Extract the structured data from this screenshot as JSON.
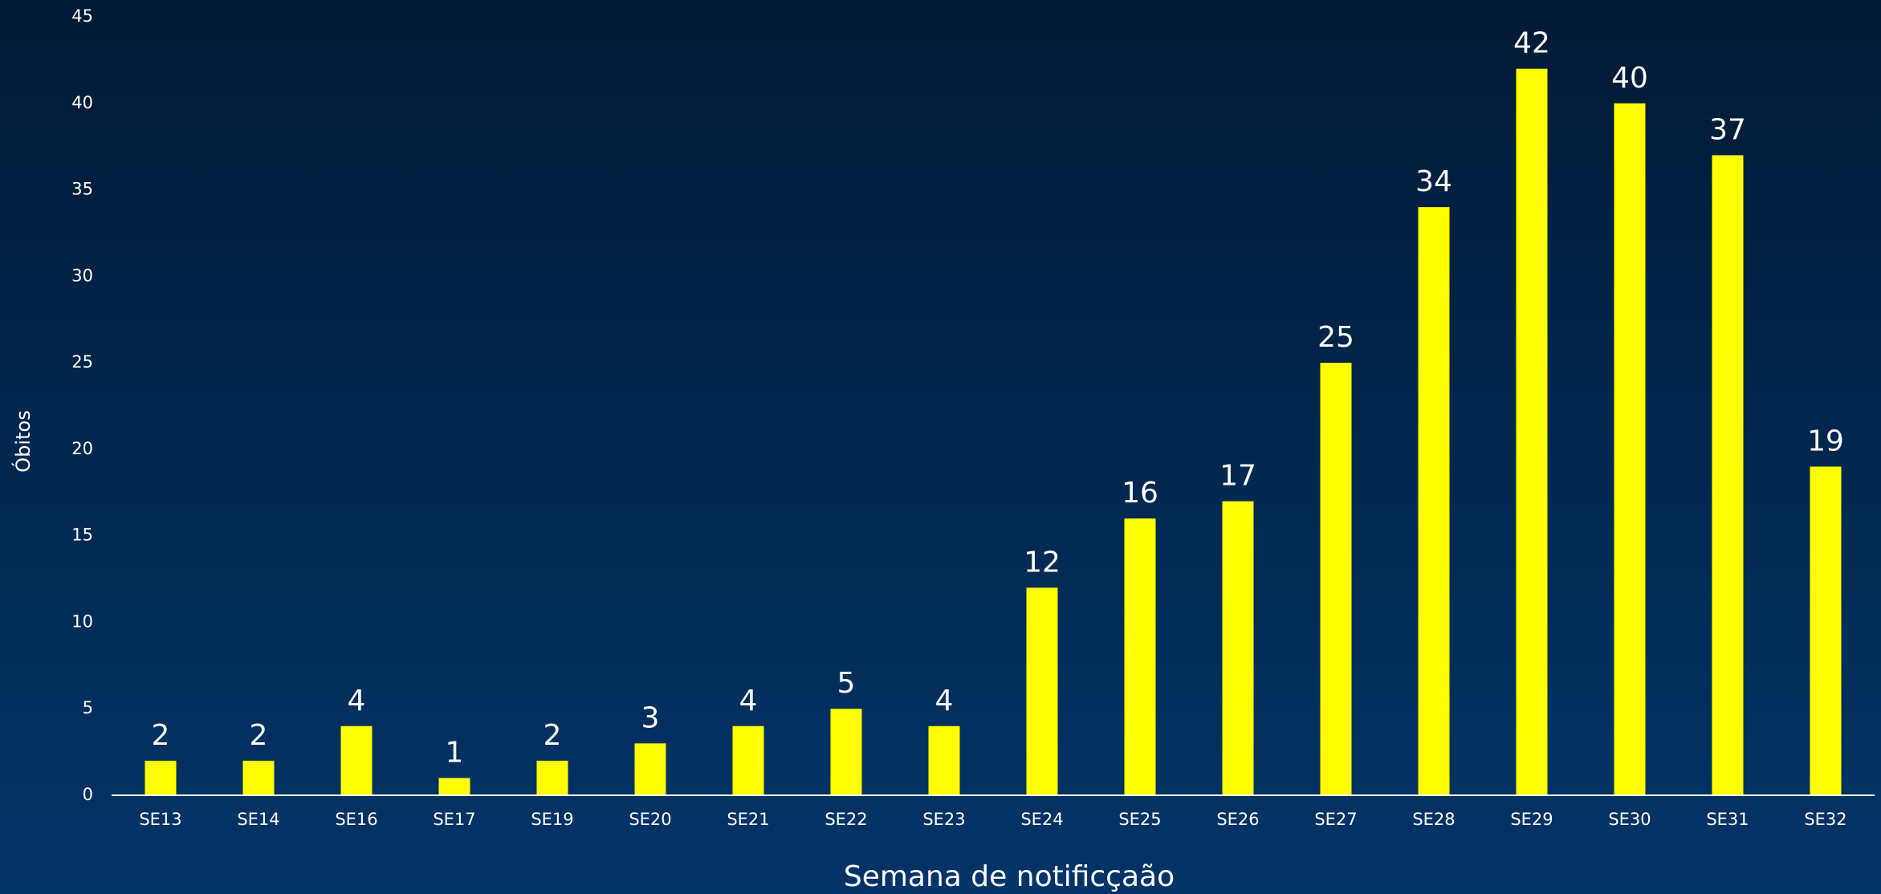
{
  "chart_data": {
    "type": "bar",
    "x_label": "Semana de notificçaão",
    "y_label": "Óbitos",
    "categories": [
      "SE13",
      "SE14",
      "SE16",
      "SE17",
      "SE19",
      "SE20",
      "SE21",
      "SE22",
      "SE23",
      "SE24",
      "SE25",
      "SE26",
      "SE27",
      "SE28",
      "SE29",
      "SE30",
      "SE31",
      "SE32"
    ],
    "values": [
      2,
      2,
      4,
      1,
      2,
      3,
      4,
      5,
      4,
      12,
      16,
      17,
      25,
      34,
      42,
      40,
      37,
      19
    ],
    "color": "#ffff00",
    "ylim": [
      0,
      45
    ],
    "yticks": [
      0,
      5,
      10,
      15,
      20,
      25,
      30,
      35,
      40,
      45
    ],
    "grid": false
  }
}
